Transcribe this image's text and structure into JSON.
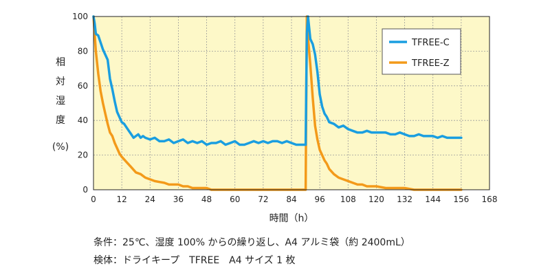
{
  "chart_data": {
    "type": "line",
    "title": "",
    "xlabel": "時間（h）",
    "ylabel_chars": [
      "相",
      "対",
      "湿",
      "度"
    ],
    "ylabel_unit": "(%)",
    "xlim": [
      0,
      168
    ],
    "ylim": [
      0,
      100
    ],
    "x_ticks": [
      "0",
      "12",
      "24",
      "36",
      "48",
      "60",
      "72",
      "84",
      "96",
      "108",
      "120",
      "132",
      "144",
      "156",
      "168"
    ],
    "y_ticks": [
      "0",
      "20",
      "40",
      "60",
      "80",
      "100"
    ],
    "grid": true,
    "legend_placement": "top-right",
    "background_color": "#fdf8c8",
    "series": [
      {
        "name": "TFREE-C",
        "color": "#1a9ee0",
        "x": [
          0,
          0.5,
          1,
          2,
          3,
          4,
          5,
          6,
          7,
          8,
          9,
          10,
          11,
          12,
          13,
          14,
          15,
          16,
          17,
          18,
          19,
          20,
          21,
          22,
          24,
          26,
          28,
          30,
          32,
          34,
          36,
          38,
          40,
          42,
          44,
          46,
          48,
          50,
          52,
          54,
          56,
          58,
          60,
          62,
          64,
          66,
          68,
          70,
          72,
          74,
          76,
          78,
          80,
          82,
          84,
          86,
          88,
          89.5,
          90,
          90.5,
          91,
          92,
          93,
          94,
          95,
          96,
          97,
          98,
          99,
          100,
          102,
          104,
          106,
          108,
          110,
          112,
          114,
          116,
          118,
          120,
          122,
          124,
          126,
          128,
          130,
          132,
          134,
          136,
          138,
          140,
          142,
          144,
          146,
          148,
          150,
          152,
          154,
          156
        ],
        "values": [
          100,
          96,
          90,
          89,
          85,
          81,
          78,
          75,
          64,
          58,
          51,
          45,
          42,
          39,
          38,
          36,
          34,
          32,
          30,
          31,
          32,
          30,
          31,
          30,
          29,
          30,
          28,
          28,
          29,
          27,
          28,
          29,
          27,
          28,
          27,
          28,
          26,
          27,
          27,
          28,
          26,
          27,
          28,
          26,
          26,
          27,
          28,
          27,
          28,
          27,
          28,
          28,
          27,
          28,
          27,
          26,
          26,
          26,
          26,
          90,
          100,
          87,
          84,
          78,
          68,
          55,
          48,
          44,
          42,
          39,
          38,
          36,
          37,
          35,
          34,
          33,
          33,
          34,
          33,
          33,
          33,
          33,
          32,
          32,
          33,
          32,
          31,
          31,
          32,
          31,
          31,
          31,
          30,
          31,
          30,
          30,
          30,
          30
        ]
      },
      {
        "name": "TFREE-Z",
        "color": "#f39a1a",
        "x": [
          0,
          0.5,
          1,
          2,
          3,
          4,
          5,
          6,
          7,
          8,
          9,
          10,
          11,
          12,
          14,
          16,
          18,
          20,
          22,
          24,
          26,
          28,
          30,
          32,
          34,
          36,
          38,
          40,
          42,
          44,
          46,
          48,
          50,
          52,
          56,
          60,
          64,
          68,
          72,
          76,
          80,
          84,
          88,
          89.5,
          90,
          90.5,
          91,
          92,
          93,
          94,
          95,
          96,
          97,
          98,
          99,
          100,
          102,
          104,
          106,
          108,
          110,
          112,
          114,
          116,
          118,
          120,
          124,
          128,
          132,
          136,
          140,
          144,
          148,
          152,
          156
        ],
        "values": [
          100,
          90,
          80,
          67,
          57,
          50,
          44,
          38,
          33,
          31,
          27,
          24,
          21,
          19,
          16,
          13,
          10,
          9,
          7,
          6,
          5,
          4.5,
          4,
          3,
          3,
          3,
          2,
          2,
          1,
          1,
          1,
          1,
          0,
          0,
          0,
          0,
          0,
          0,
          0,
          0,
          0,
          0,
          0,
          0,
          0,
          100,
          88,
          72,
          53,
          37,
          29,
          23,
          20,
          17,
          15,
          12,
          9,
          7,
          6,
          5,
          4,
          3,
          3,
          2,
          2,
          2,
          1,
          1,
          1,
          0,
          0,
          0,
          0,
          0,
          0
        ]
      }
    ]
  },
  "notes": {
    "line1": "条件：25℃、湿度 100% からの繰り返し、A4 アルミ袋（約 2400mL）",
    "line2": "検体：ドライキープ　TFREE　A4 サイズ 1 枚"
  }
}
